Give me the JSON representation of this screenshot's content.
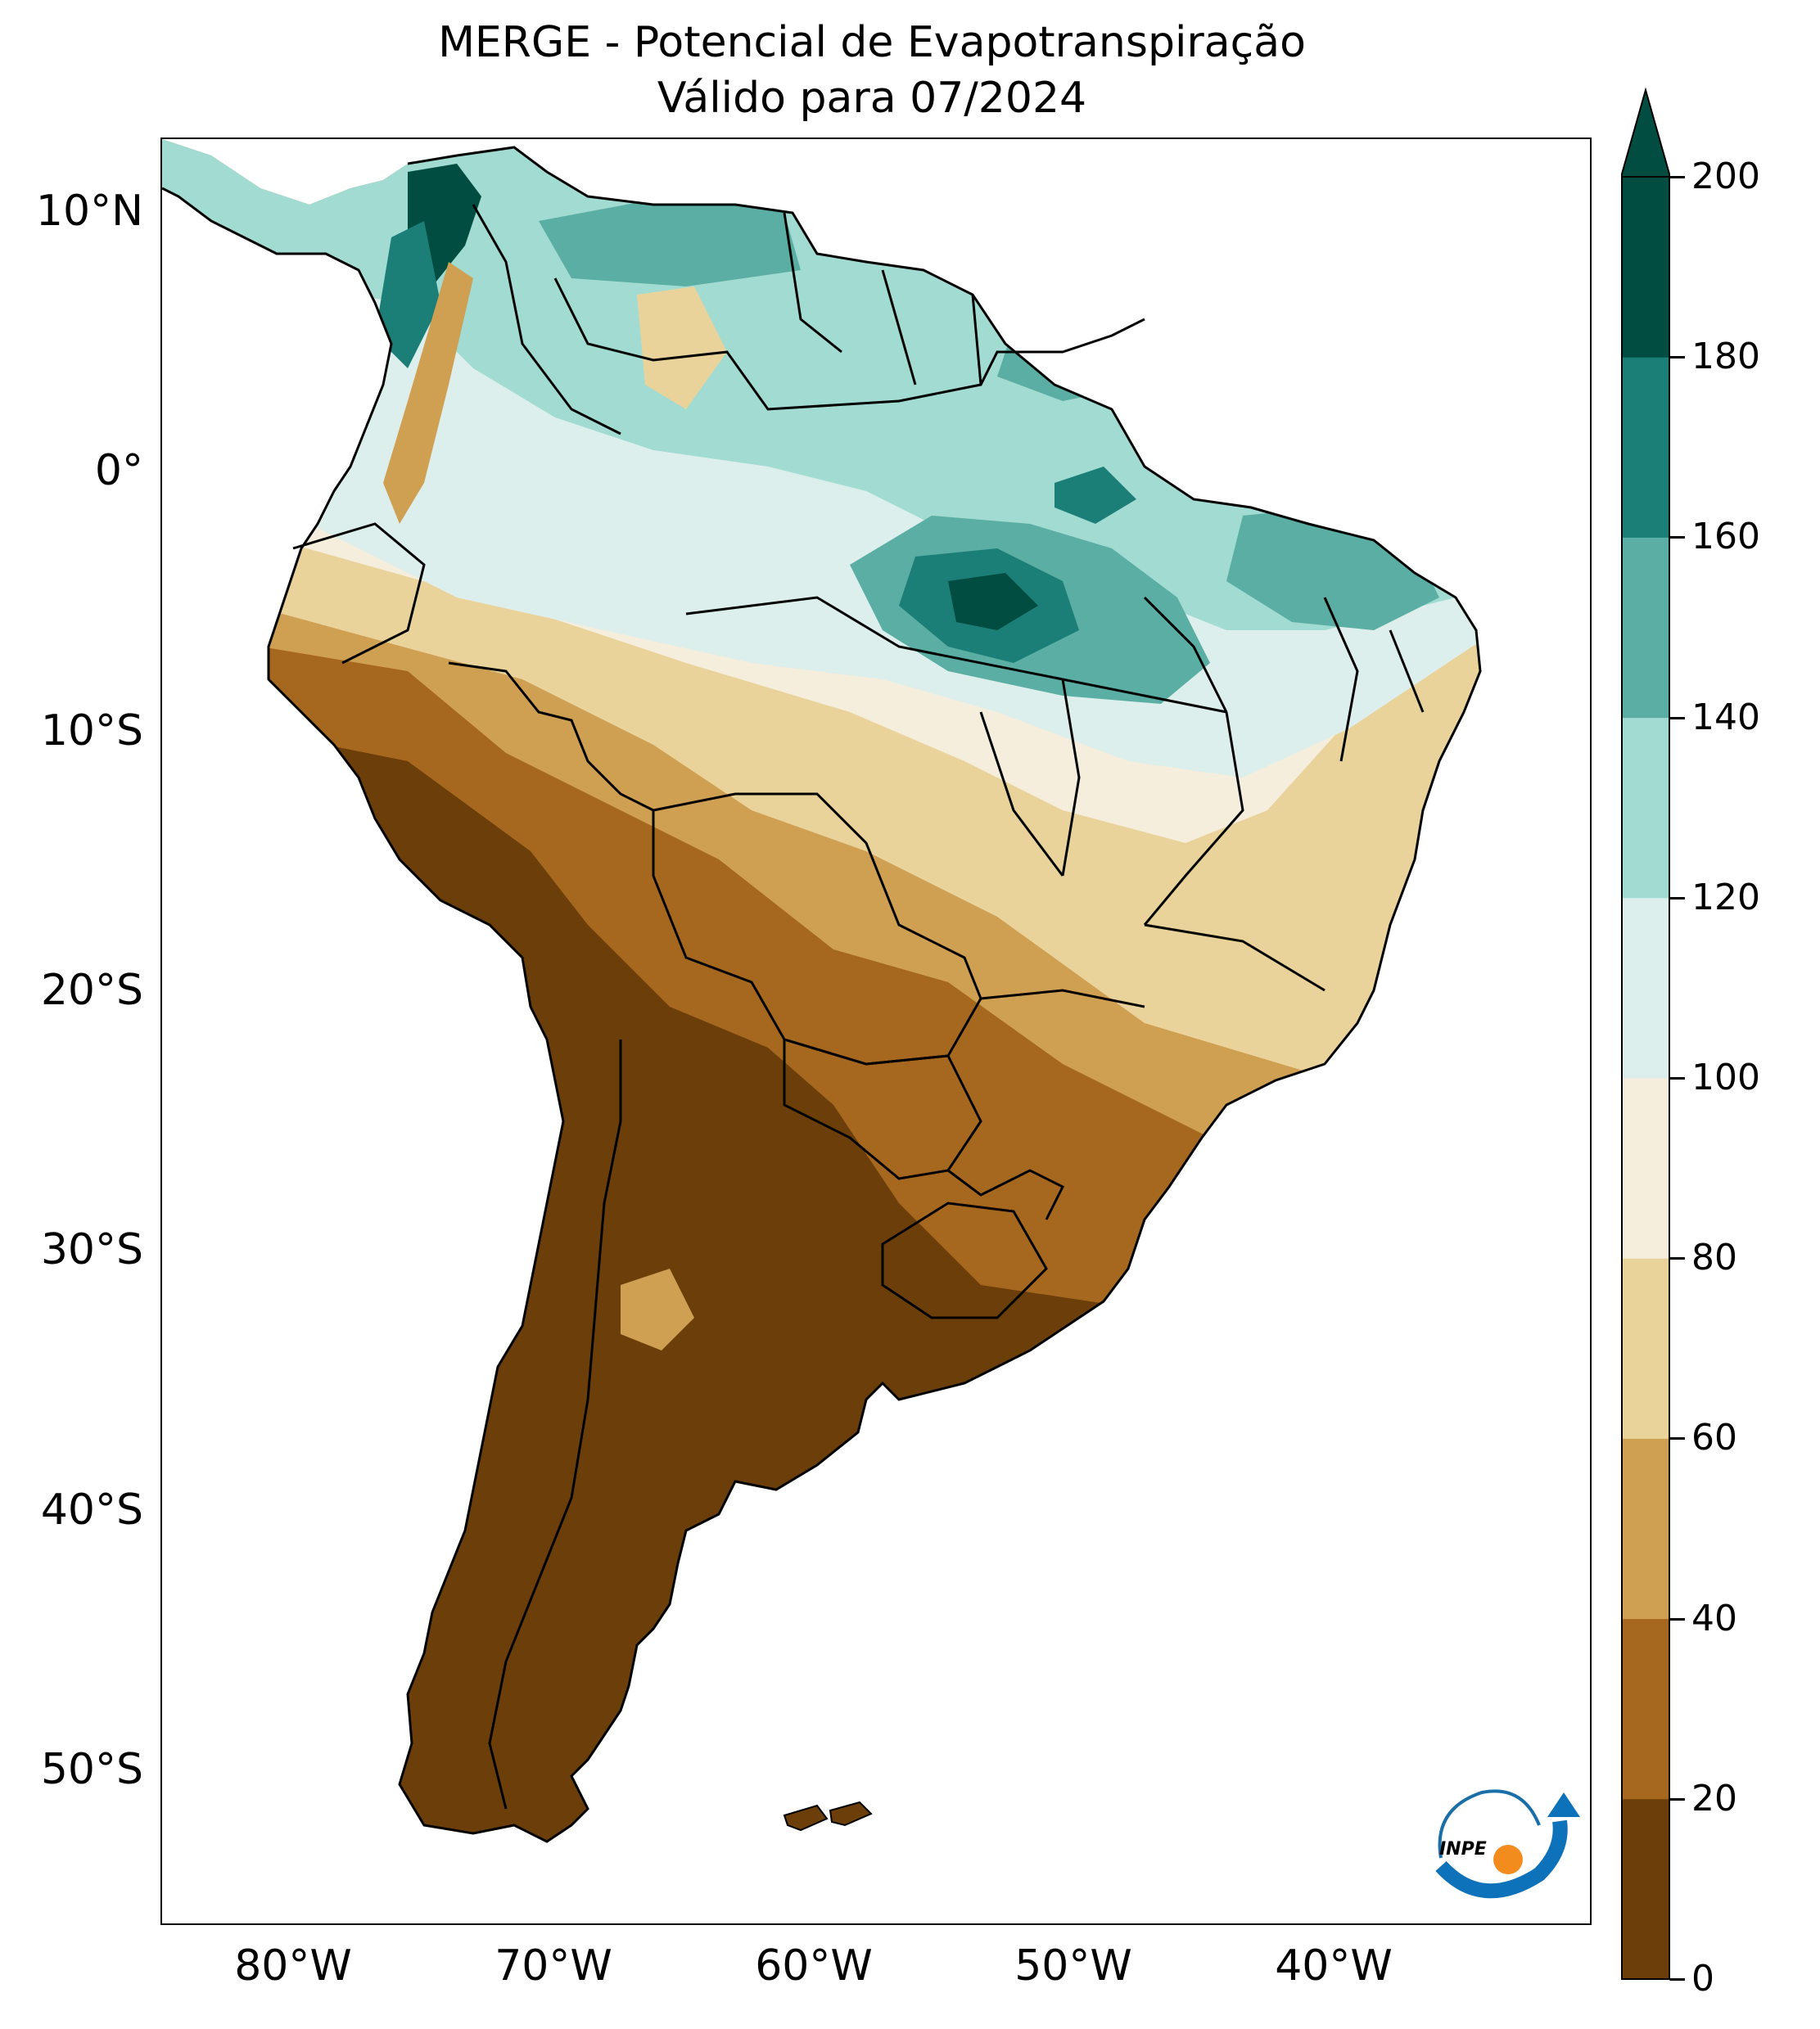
{
  "title": {
    "line1": "MERGE - Potencial de Evapotranspiração",
    "line2": "Válido para 07/2024"
  },
  "map": {
    "region": "South America",
    "variable": "Potencial de Evapotranspiração",
    "lon_range": [
      -85,
      -30
    ],
    "lat_range": [
      -56,
      13
    ],
    "lat_ticks": [
      "10°N",
      "0°",
      "10°S",
      "20°S",
      "30°S",
      "40°S",
      "50°S"
    ],
    "lon_ticks": [
      "80°W",
      "70°W",
      "60°W",
      "50°W",
      "40°W"
    ]
  },
  "colorbar": {
    "levels": [
      0,
      20,
      40,
      60,
      80,
      100,
      120,
      140,
      160,
      180,
      200
    ],
    "tick_labels": [
      "0",
      "20",
      "40",
      "60",
      "80",
      "100",
      "120",
      "140",
      "160",
      "180",
      "200"
    ],
    "colors": [
      "#6b3e0a",
      "#a5681e",
      "#cf9f52",
      "#ead39b",
      "#f5eedc",
      "#ddefec",
      "#a1dbd1",
      "#5aaea3",
      "#1c7f77",
      "#014d41"
    ],
    "extend": "max"
  },
  "logo": {
    "text": "INPE"
  }
}
